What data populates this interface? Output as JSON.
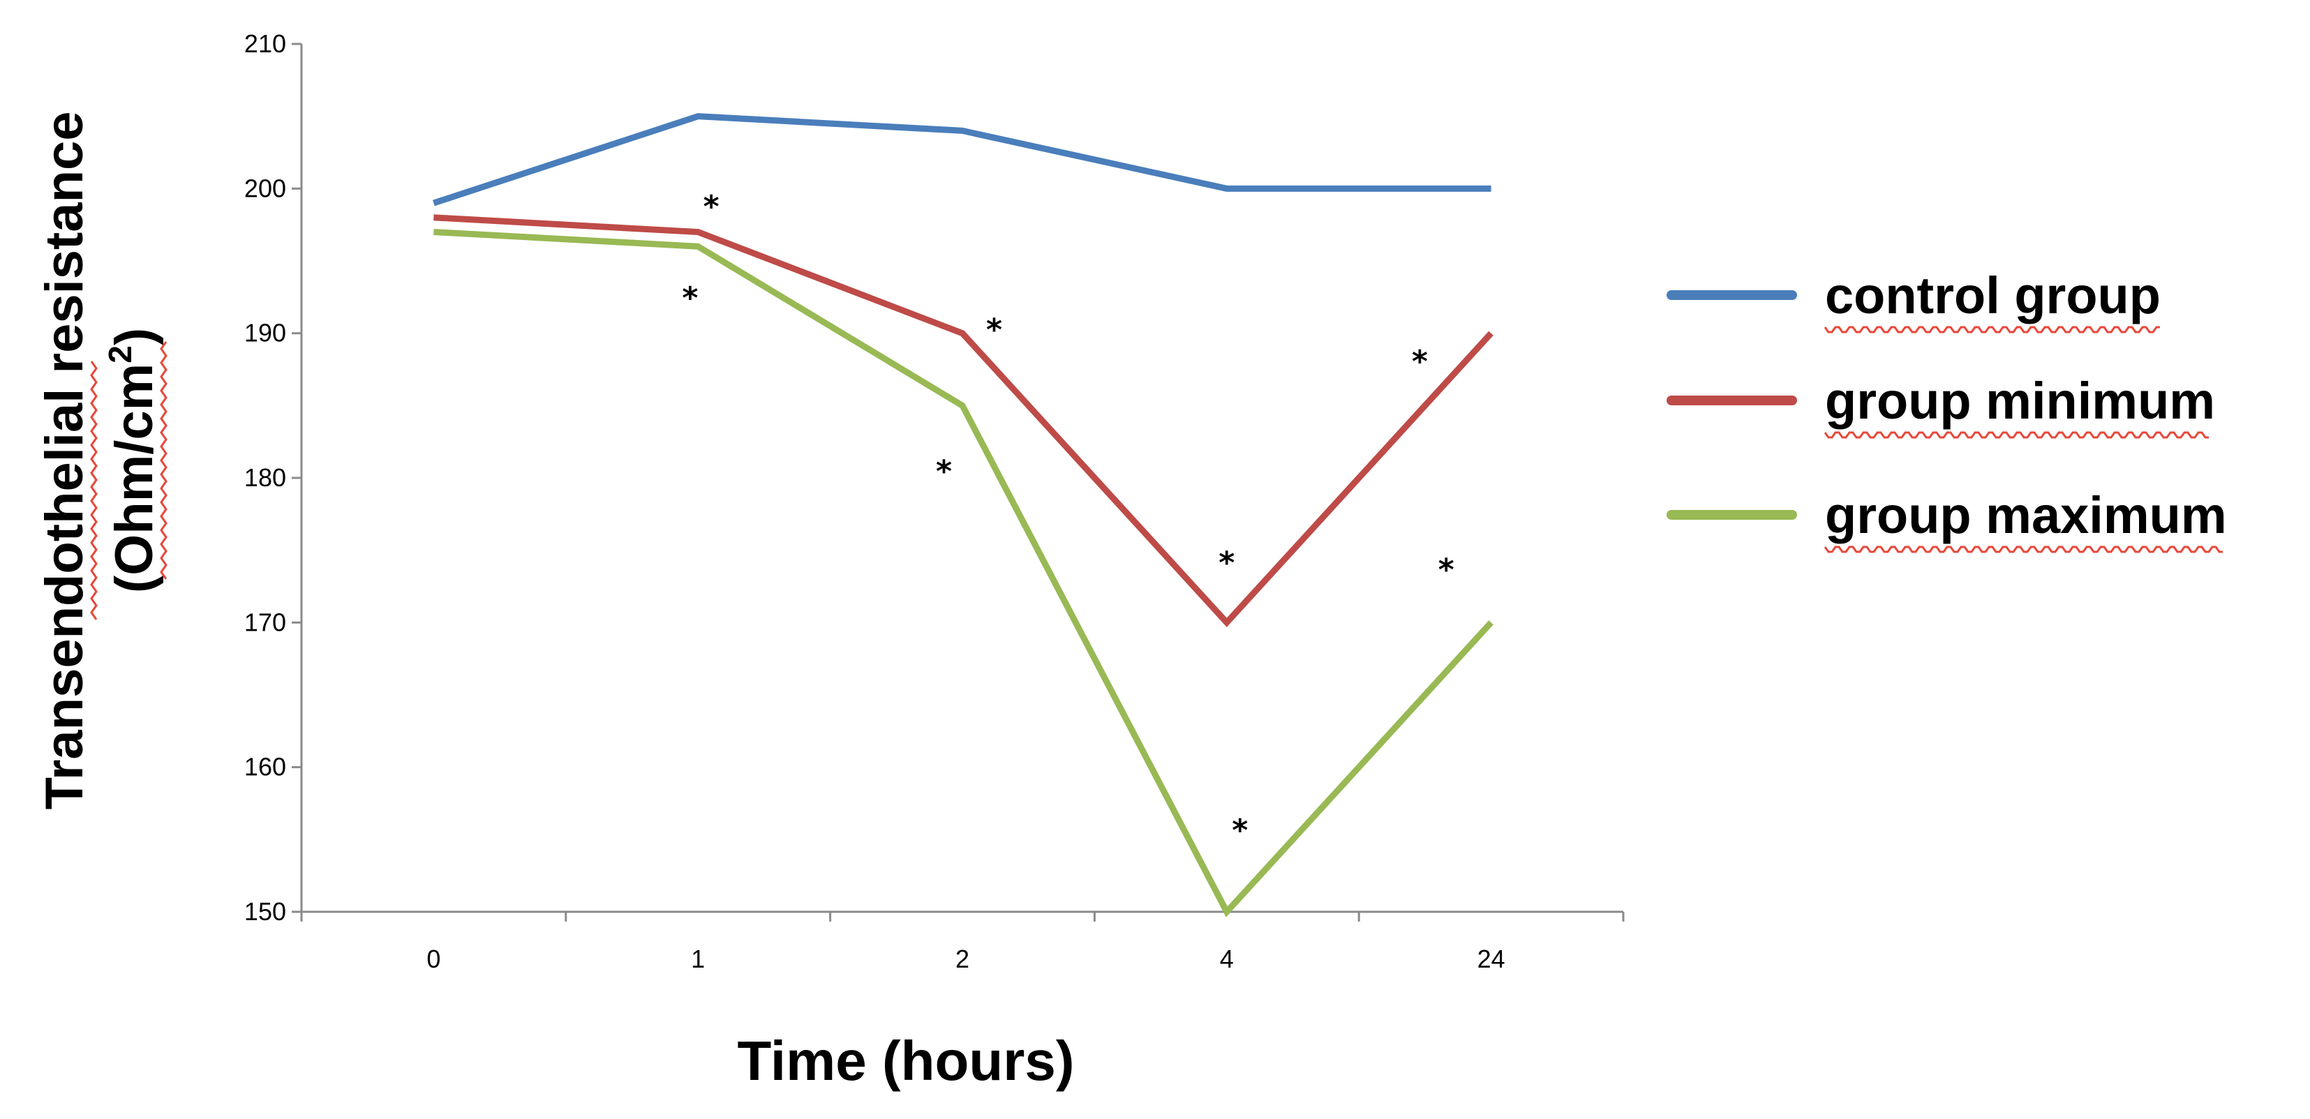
{
  "chart_data": {
    "type": "line",
    "categories": [
      "0",
      "1",
      "2",
      "4",
      "24"
    ],
    "xlabel": "Time (hours)",
    "ylabel_line1": "Transendothelial resistance",
    "ylabel_line2": "(Ohm/cm",
    "ylabel_sup": "2",
    "ylabel_close": ")",
    "ylim": [
      150,
      210
    ],
    "yticks": [
      "150",
      "160",
      "170",
      "180",
      "190",
      "200",
      "210"
    ],
    "grid": false,
    "legend_position": "right",
    "series": [
      {
        "name": "control group",
        "color": "#4a7ebb",
        "values": [
          199,
          205,
          204,
          200,
          200
        ]
      },
      {
        "name": "group minimum",
        "color": "#be4b48",
        "values": [
          198,
          197,
          190,
          170,
          190
        ]
      },
      {
        "name": "group maximum",
        "color": "#98b954",
        "values": [
          197,
          196,
          185,
          150,
          170
        ]
      }
    ],
    "annotations": [
      {
        "text": "*",
        "x": 1.05,
        "y": 198.8
      },
      {
        "text": "*",
        "x": 0.97,
        "y": 192.5
      },
      {
        "text": "*",
        "x": 2.12,
        "y": 190.3
      },
      {
        "text": "*",
        "x": 1.93,
        "y": 180.5
      },
      {
        "text": "*",
        "x": 3.0,
        "y": 174.2
      },
      {
        "text": "*",
        "x": 3.05,
        "y": 155.7
      },
      {
        "text": "*",
        "x": 3.73,
        "y": 188.1
      },
      {
        "text": "*",
        "x": 3.83,
        "y": 173.7
      }
    ]
  }
}
